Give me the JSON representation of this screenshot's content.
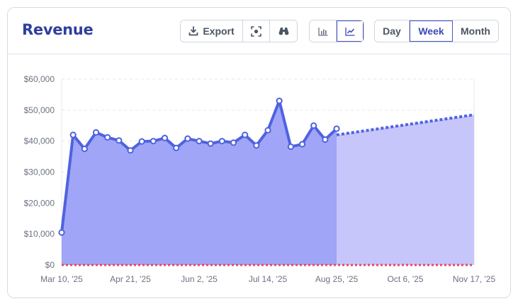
{
  "header": {
    "title": "Revenue",
    "export_label": "Export",
    "range_options": [
      "Day",
      "Week",
      "Month"
    ],
    "selected_range": "Week",
    "selected_chart_type": "line"
  },
  "colors": {
    "accent": "#4f62e0",
    "area_actual": "#a0a5f7",
    "area_forecast": "#c6c6fb",
    "zero_line": "#e8475f",
    "title": "#2e3f9e"
  },
  "chart_data": {
    "type": "area",
    "title": "",
    "xlabel": "",
    "ylabel": "",
    "ylim": [
      0,
      60000
    ],
    "y_ticks": [
      0,
      10000,
      20000,
      30000,
      40000,
      50000,
      60000
    ],
    "y_tick_labels": [
      "$0",
      "$10,000",
      "$20,000",
      "$30,000",
      "$40,000",
      "$50,000",
      "$60,000"
    ],
    "x_range": [
      "2025-03-10",
      "2025-11-17"
    ],
    "x_ticks": [
      "2025-03-10",
      "2025-04-21",
      "2025-06-02",
      "2025-07-14",
      "2025-08-25",
      "2025-10-06",
      "2025-11-17"
    ],
    "x_tick_labels": [
      "Mar 10, '25",
      "Apr 21, '25",
      "Jun 2, '25",
      "Jul 14, '25",
      "Aug 25, '25",
      "Oct 6, '25",
      "Nov 17, '25"
    ],
    "grid": true,
    "series": [
      {
        "style": "solid-with-markers",
        "x": [
          "2025-03-10",
          "2025-03-17",
          "2025-03-24",
          "2025-03-31",
          "2025-04-07",
          "2025-04-14",
          "2025-04-21",
          "2025-04-28",
          "2025-05-05",
          "2025-05-12",
          "2025-05-19",
          "2025-05-26",
          "2025-06-02",
          "2025-06-09",
          "2025-06-16",
          "2025-06-23",
          "2025-06-30",
          "2025-07-07",
          "2025-07-14",
          "2025-07-21",
          "2025-07-28",
          "2025-08-04",
          "2025-08-11",
          "2025-08-18",
          "2025-08-25"
        ],
        "values": [
          10500,
          42000,
          37500,
          42800,
          41200,
          40200,
          37000,
          39900,
          40000,
          41000,
          37800,
          40800,
          40000,
          39200,
          40000,
          39500,
          42000,
          38600,
          43500,
          53000,
          38200,
          39000,
          45000,
          40500,
          44000
        ]
      },
      {
        "style": "dashed-forecast",
        "x": [
          "2025-08-25",
          "2025-11-17"
        ],
        "values": [
          42000,
          48500
        ]
      },
      {
        "style": "dashed-baseline",
        "x": [
          "2025-03-10",
          "2025-11-17"
        ],
        "values": [
          0,
          0
        ]
      }
    ]
  }
}
